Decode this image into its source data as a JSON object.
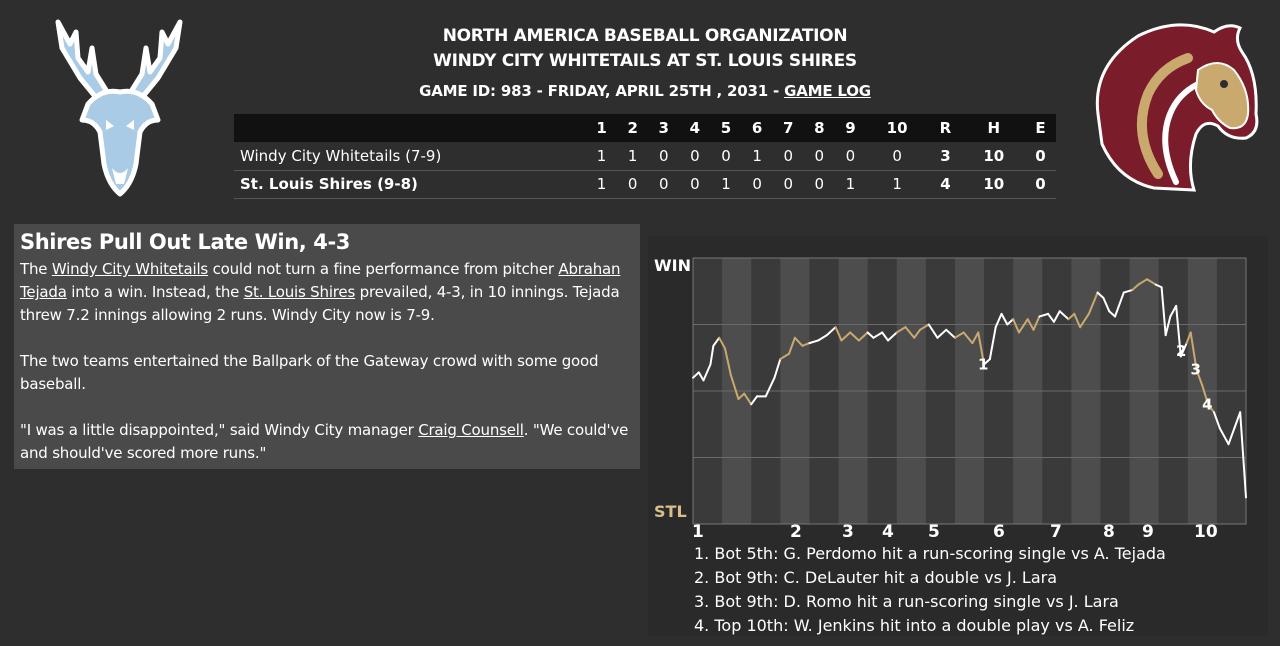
{
  "header": {
    "org": "NORTH AMERICA BASEBALL ORGANIZATION",
    "matchup": "WINDY CITY WHITETAILS AT ST. LOUIS SHIRES",
    "game_info": "GAME ID: 983 - FRIDAY, APRIL 25TH , 2031 - ",
    "game_log_link": "GAME LOG"
  },
  "colors": {
    "away": "#ffffff",
    "home": "#c9a96e",
    "away_logo": "#a9cbe6",
    "home_logo": "#7a1c2a"
  },
  "linescore": {
    "headers": [
      "1",
      "2",
      "3",
      "4",
      "5",
      "6",
      "7",
      "8",
      "9",
      "10",
      "R",
      "H",
      "E"
    ],
    "away": {
      "team": "Windy City Whitetails (7-9)",
      "innings": [
        "1",
        "1",
        "0",
        "0",
        "0",
        "1",
        "0",
        "0",
        "0",
        "0"
      ],
      "r": "3",
      "h": "10",
      "e": "0"
    },
    "home": {
      "team": "St. Louis Shires (9-8)",
      "innings": [
        "1",
        "0",
        "0",
        "0",
        "1",
        "0",
        "0",
        "0",
        "1",
        "1"
      ],
      "r": "4",
      "h": "10",
      "e": "0"
    }
  },
  "story": {
    "headline": "Shires Pull Out Late Win, 4-3",
    "p1": {
      "t1": "The ",
      "link1": "Windy City Whitetails",
      "t2": " could not turn a fine performance from pitcher ",
      "link2": "Abrahan Tejada",
      "t3": " into a win. Instead, the ",
      "link3": "St. Louis Shires",
      "t4": " prevailed, 4-3, in 10 innings. Tejada threw 7.2 innings allowing 2 runs. Windy City now is 7-9."
    },
    "p2": "The two teams entertained the Ballpark of the Gateway crowd with some good baseball.",
    "p3": {
      "t1": "\"I was a little disappointed,\" said Windy City manager ",
      "link1": "Craig Counsell",
      "t2": ". \"We could've and should've scored more runs.\""
    }
  },
  "chart": {
    "win_label": "WIN",
    "stl_label": "STL",
    "innings": [
      "1",
      "2",
      "3",
      "4",
      "5",
      "6",
      "7",
      "8",
      "9",
      "10"
    ],
    "events": [
      "1. Bot 5th: G. Perdomo hit a run-scoring single vs A. Tejada",
      "2. Bot 9th: C. DeLauter hit a double vs J. Lara",
      "3. Bot 9th: D. Romo hit a run-scoring single vs J. Lara",
      "4. Top 10th: W. Jenkins hit into a double play vs A. Feliz"
    ],
    "markers": [
      "1",
      "2",
      "3",
      "4"
    ]
  },
  "chart_data": {
    "type": "line",
    "title": "",
    "xlabel": "",
    "ylabel": "",
    "ylim": [
      0,
      1
    ],
    "x_categories": [
      "1",
      "2",
      "3",
      "4",
      "5",
      "6",
      "7",
      "8",
      "9",
      "10"
    ],
    "series": [
      {
        "values": [
          [
            0.0,
            0.55
          ],
          [
            0.1,
            0.57
          ],
          [
            0.18,
            0.54
          ],
          [
            0.3,
            0.6
          ],
          [
            0.35,
            0.67
          ],
          [
            0.45,
            0.7
          ],
          [
            0.55,
            0.66
          ],
          [
            0.65,
            0.56
          ],
          [
            0.78,
            0.47
          ],
          [
            0.88,
            0.49
          ],
          [
            1.0,
            0.45
          ],
          [
            1.1,
            0.48
          ],
          [
            1.25,
            0.48
          ],
          [
            1.4,
            0.55
          ],
          [
            1.5,
            0.62
          ],
          [
            1.65,
            0.64
          ],
          [
            1.75,
            0.7
          ],
          [
            1.88,
            0.67
          ],
          [
            2.0,
            0.68
          ],
          [
            2.15,
            0.69
          ],
          [
            2.3,
            0.71
          ],
          [
            2.45,
            0.74
          ],
          [
            2.55,
            0.69
          ],
          [
            2.7,
            0.72
          ],
          [
            2.85,
            0.69
          ],
          [
            3.0,
            0.72
          ],
          [
            3.1,
            0.7
          ],
          [
            3.25,
            0.72
          ],
          [
            3.35,
            0.69
          ],
          [
            3.5,
            0.72
          ],
          [
            3.65,
            0.74
          ],
          [
            3.8,
            0.7
          ],
          [
            3.9,
            0.73
          ],
          [
            4.05,
            0.75
          ],
          [
            4.2,
            0.7
          ],
          [
            4.35,
            0.73
          ],
          [
            4.5,
            0.7
          ],
          [
            4.65,
            0.72
          ],
          [
            4.8,
            0.68
          ],
          [
            4.9,
            0.72
          ],
          [
            5.0,
            0.6
          ],
          [
            5.1,
            0.62
          ],
          [
            5.2,
            0.74
          ],
          [
            5.3,
            0.79
          ],
          [
            5.4,
            0.75
          ],
          [
            5.5,
            0.77
          ],
          [
            5.6,
            0.72
          ],
          [
            5.75,
            0.77
          ],
          [
            5.85,
            0.73
          ],
          [
            5.95,
            0.78
          ],
          [
            6.1,
            0.79
          ],
          [
            6.2,
            0.76
          ],
          [
            6.3,
            0.8
          ],
          [
            6.45,
            0.77
          ],
          [
            6.55,
            0.79
          ],
          [
            6.65,
            0.74
          ],
          [
            6.8,
            0.79
          ],
          [
            6.95,
            0.87
          ],
          [
            7.05,
            0.85
          ],
          [
            7.15,
            0.8
          ],
          [
            7.25,
            0.78
          ],
          [
            7.4,
            0.87
          ],
          [
            7.55,
            0.88
          ],
          [
            7.65,
            0.9
          ],
          [
            7.8,
            0.92
          ],
          [
            7.95,
            0.9
          ],
          [
            8.05,
            0.89
          ],
          [
            8.12,
            0.71
          ],
          [
            8.2,
            0.78
          ],
          [
            8.3,
            0.82
          ],
          [
            8.38,
            0.63
          ],
          [
            8.48,
            0.68
          ],
          [
            8.55,
            0.72
          ],
          [
            8.65,
            0.58
          ],
          [
            8.75,
            0.52
          ],
          [
            8.85,
            0.45
          ],
          [
            8.95,
            0.42
          ],
          [
            9.05,
            0.36
          ],
          [
            9.2,
            0.3
          ],
          [
            9.3,
            0.36
          ],
          [
            9.4,
            0.42
          ],
          [
            9.5,
            0.1
          ]
        ]
      }
    ]
  }
}
